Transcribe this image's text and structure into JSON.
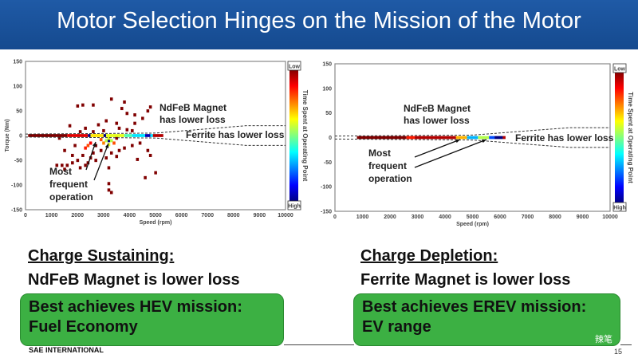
{
  "slide": {
    "title": "Motor Selection Hinges on the Mission of the Motor",
    "footer": "SAE INTERNATIONAL",
    "page_number": "15",
    "watermark": "辣笔"
  },
  "left": {
    "heading": "Charge Sustaining:",
    "statement": "NdFeB Magnet is lower loss",
    "box_line1": "Best achieves HEV mission:",
    "box_line2": "Fuel Economy"
  },
  "right": {
    "heading": "Charge Depletion:",
    "statement": "Ferrite Magnet is lower loss",
    "box_line1": "Best achieves EREV mission:",
    "box_line2": "EV range"
  },
  "colors": {
    "header": "#1f5aa6",
    "box": "#3cb043"
  },
  "chart_data": [
    {
      "type": "heatmap",
      "xlabel": "Speed (rpm)",
      "ylabel": "Torque (Nm)",
      "xlim": [
        0,
        10000
      ],
      "ylim": [
        -150,
        150
      ],
      "xticks": [
        "0",
        "1000",
        "2000",
        "3000",
        "4000",
        "5000",
        "6000",
        "7000",
        "8000",
        "9000",
        "10000"
      ],
      "yticks": [
        "150",
        "100",
        "50",
        "0",
        "-50",
        "-100",
        "-150"
      ],
      "colorbar": {
        "label": "Time Spent at Operating Point",
        "low": "Low",
        "high": "High"
      },
      "annotations": {
        "ndfeb": [
          "NdFeB Magnet",
          "has lower loss"
        ],
        "ferrite": "Ferrite has lower loss",
        "most": [
          "Most",
          "frequent",
          "operation"
        ]
      },
      "band": [
        [
          100,
          1600,
          0
        ],
        [
          1600,
          2400,
          0.1
        ],
        [
          2400,
          2500,
          1
        ],
        [
          2500,
          3000,
          0.35
        ],
        [
          3000,
          3100,
          1
        ],
        [
          3100,
          3800,
          0.4
        ],
        [
          3800,
          4100,
          0.55
        ],
        [
          4100,
          4600,
          0.65
        ],
        [
          4600,
          4800,
          0.95
        ],
        [
          4800,
          4900,
          0.65
        ],
        [
          4900,
          5300,
          0.05
        ]
      ],
      "cells": [
        [
          3200,
          -10,
          1
        ],
        [
          3100,
          -10,
          0.45
        ],
        [
          3300,
          -10,
          0.45
        ],
        [
          3200,
          -5,
          0.4
        ],
        [
          3200,
          -18,
          0.4
        ],
        [
          3000,
          -15,
          0.25
        ],
        [
          3400,
          -15,
          0.2
        ],
        [
          2900,
          -8,
          0.2
        ],
        [
          2400,
          -20,
          0.2
        ],
        [
          2300,
          -25,
          0.15
        ],
        [
          2500,
          -15,
          0.12
        ],
        [
          2000,
          60,
          0
        ],
        [
          2200,
          62,
          0
        ],
        [
          2600,
          62,
          0
        ],
        [
          3300,
          74,
          0
        ],
        [
          3800,
          68,
          0
        ],
        [
          3700,
          55,
          0
        ],
        [
          3900,
          45,
          0
        ],
        [
          4200,
          42,
          0
        ],
        [
          4700,
          50,
          0
        ],
        [
          4800,
          58,
          0
        ],
        [
          4500,
          35,
          0
        ],
        [
          4200,
          25,
          0
        ],
        [
          1700,
          20,
          0
        ],
        [
          2300,
          15,
          0
        ],
        [
          2800,
          22,
          0
        ],
        [
          3100,
          30,
          0
        ],
        [
          3500,
          25,
          0
        ],
        [
          3600,
          15,
          0
        ],
        [
          3900,
          12,
          0
        ],
        [
          2100,
          8,
          0
        ],
        [
          2600,
          8,
          0
        ],
        [
          3000,
          10,
          0
        ],
        [
          4100,
          10,
          0
        ],
        [
          1300,
          -5,
          0
        ],
        [
          1500,
          -30,
          0
        ],
        [
          1900,
          -20,
          0
        ],
        [
          2200,
          -40,
          0
        ],
        [
          2600,
          -35,
          0
        ],
        [
          2900,
          -30,
          0
        ],
        [
          3300,
          -35,
          0
        ],
        [
          3600,
          -30,
          0
        ],
        [
          3800,
          -25,
          0
        ],
        [
          4100,
          -20,
          0
        ],
        [
          4400,
          -15,
          0
        ],
        [
          4700,
          -30,
          0
        ],
        [
          4800,
          -40,
          0
        ],
        [
          1200,
          -60,
          0
        ],
        [
          1400,
          -60,
          0
        ],
        [
          1600,
          -60,
          0
        ],
        [
          1800,
          -55,
          0
        ],
        [
          2000,
          -50,
          0
        ],
        [
          2100,
          -65,
          0
        ],
        [
          1500,
          -68,
          0
        ],
        [
          2400,
          -55,
          0
        ],
        [
          2700,
          -50,
          0
        ],
        [
          3100,
          -45,
          0
        ],
        [
          3500,
          -42,
          0
        ],
        [
          4300,
          -48,
          0
        ],
        [
          3200,
          -65,
          0
        ],
        [
          3200,
          -97,
          0
        ],
        [
          3200,
          -110,
          0
        ],
        [
          3300,
          -115,
          0
        ],
        [
          4600,
          -85,
          0
        ],
        [
          5000,
          -75,
          0
        ],
        [
          2700,
          -20,
          0
        ],
        [
          3500,
          -5,
          0
        ],
        [
          2500,
          -45,
          0
        ],
        [
          2300,
          -60,
          0
        ],
        [
          1800,
          -40,
          0
        ]
      ]
    },
    {
      "type": "heatmap",
      "xlabel": "Speed (rpm)",
      "ylabel": "Torque (Nm)",
      "xlim": [
        0,
        10000
      ],
      "ylim": [
        -150,
        150
      ],
      "xticks": [
        "0",
        "1000",
        "2000",
        "3000",
        "4000",
        "5000",
        "6000",
        "7000",
        "8000",
        "9000",
        "10000"
      ],
      "yticks": [
        "150",
        "100",
        "50",
        "0",
        "-50",
        "-100",
        "-150"
      ],
      "colorbar": {
        "label": "Time Spent at Operating Point",
        "low": "Low",
        "high": "High"
      },
      "annotations": {
        "ndfeb": [
          "NdFeB Magnet",
          "has lower loss"
        ],
        "ferrite": "Ferrite has lower loss",
        "most": [
          "Most",
          "frequent",
          "operation"
        ]
      },
      "band": [
        [
          800,
          2600,
          0
        ],
        [
          2600,
          2900,
          0.15
        ],
        [
          2900,
          4400,
          0.05
        ],
        [
          4400,
          4800,
          0.3
        ],
        [
          4800,
          5200,
          0.7
        ],
        [
          5200,
          5600,
          0.45
        ],
        [
          5600,
          5800,
          0.8
        ],
        [
          5800,
          6100,
          1
        ],
        [
          6100,
          6200,
          0.05
        ]
      ],
      "cells": []
    }
  ]
}
